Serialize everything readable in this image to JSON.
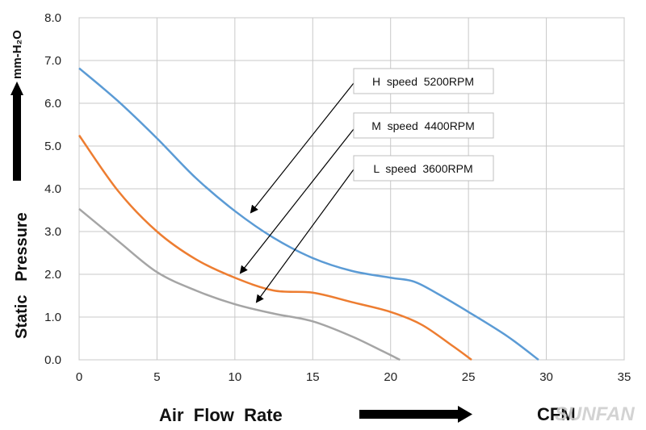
{
  "chart_data": {
    "type": "line",
    "xlim": [
      0,
      35
    ],
    "ylim": [
      0,
      8
    ],
    "xticks": [
      "0",
      "5",
      "10",
      "15",
      "20",
      "25",
      "30",
      "35"
    ],
    "yticks": [
      "0.0",
      "1.0",
      "2.0",
      "3.0",
      "4.0",
      "5.0",
      "6.0",
      "7.0",
      "8.0"
    ],
    "grid": true,
    "xlabel": "Air  Flow  Rate",
    "x_unit": "CFM",
    "ylabel": "Static   Pressure",
    "y_unit": "mm-H₂O",
    "series": [
      {
        "name": "H  speed  5200RPM",
        "color": "#5b9bd5",
        "x": [
          0,
          2.5,
          5,
          7.5,
          10,
          12.5,
          15,
          17.5,
          20,
          21.5,
          23,
          25,
          27.5,
          29.5
        ],
        "y": [
          6.82,
          6.05,
          5.18,
          4.25,
          3.48,
          2.85,
          2.38,
          2.08,
          1.92,
          1.83,
          1.55,
          1.12,
          0.55,
          0.0
        ]
      },
      {
        "name": "M  speed  4400RPM",
        "color": "#ed7d31",
        "x": [
          0,
          2.5,
          5,
          7.5,
          10,
          12.5,
          15,
          17.5,
          20,
          22,
          24,
          25.2
        ],
        "y": [
          5.25,
          3.95,
          3.0,
          2.35,
          1.92,
          1.62,
          1.57,
          1.35,
          1.12,
          0.82,
          0.32,
          0.0
        ]
      },
      {
        "name": "L  speed  3600RPM",
        "color": "#a5a5a5",
        "x": [
          0,
          2.5,
          5,
          7.5,
          10,
          12.5,
          15,
          17.5,
          19.5,
          20.6
        ],
        "y": [
          3.53,
          2.78,
          2.05,
          1.62,
          1.3,
          1.08,
          0.9,
          0.55,
          0.2,
          0.0
        ]
      }
    ],
    "legend": {
      "placement": "upper-right (boxed labels with arrows to curves)"
    }
  },
  "watermark": "SUNFAN"
}
